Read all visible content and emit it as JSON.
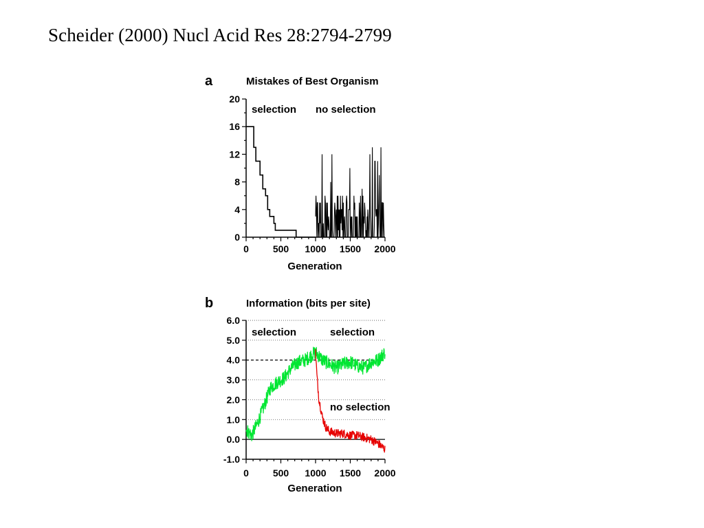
{
  "slide": {
    "title": "Scheider (2000) Nucl Acid Res 28:2794-2799"
  },
  "chart_data": [
    {
      "panel_letter": "a",
      "type": "line",
      "title": "Mistakes of Best Organism",
      "xlabel": "Generation",
      "ylabel": "",
      "xlim": [
        0,
        2000
      ],
      "ylim": [
        0,
        20
      ],
      "x_ticks": [
        "0",
        "500",
        "1000",
        "1500",
        "2000"
      ],
      "y_ticks": [
        "0",
        "4",
        "8",
        "12",
        "16",
        "20"
      ],
      "annotations": [
        "selection",
        "no selection"
      ],
      "series": [
        {
          "color": "#000000",
          "points": [
            [
              0,
              16
            ],
            [
              90,
              16
            ],
            [
              110,
              13
            ],
            [
              140,
              11
            ],
            [
              180,
              11
            ],
            [
              200,
              9
            ],
            [
              240,
              7
            ],
            [
              280,
              6
            ],
            [
              310,
              4
            ],
            [
              340,
              3
            ],
            [
              380,
              3
            ],
            [
              400,
              2
            ],
            [
              420,
              1
            ],
            [
              600,
              1
            ],
            [
              700,
              1
            ],
            [
              720,
              0
            ],
            [
              1000,
              0
            ]
          ]
        },
        {
          "color": "#000000",
          "style": "noisy",
          "x_range": [
            1000,
            2000
          ],
          "baseline_range": [
            0,
            6
          ],
          "max_observed": 13
        }
      ]
    },
    {
      "panel_letter": "b",
      "type": "line",
      "title": "Information (bits per site)",
      "xlabel": "Generation",
      "ylabel": "",
      "xlim": [
        0,
        2000
      ],
      "ylim": [
        -1.0,
        6.0
      ],
      "x_ticks": [
        "0",
        "500",
        "1000",
        "1500",
        "2000"
      ],
      "y_ticks": [
        "-1.0",
        "0.0",
        "1.0",
        "2.0",
        "3.0",
        "4.0",
        "5.0",
        "6.0"
      ],
      "reference_line": 4.0,
      "annotations": [
        "selection",
        "selection",
        "no selection"
      ],
      "series": [
        {
          "color": "#00e632",
          "trend": [
            [
              0,
              0.5
            ],
            [
              80,
              0.2
            ],
            [
              150,
              0.7
            ],
            [
              250,
              1.6
            ],
            [
              350,
              2.6
            ],
            [
              450,
              2.9
            ],
            [
              550,
              3.1
            ],
            [
              650,
              3.6
            ],
            [
              750,
              3.9
            ],
            [
              850,
              4.0
            ],
            [
              1000,
              4.4
            ],
            [
              1100,
              4.0
            ],
            [
              1200,
              3.8
            ],
            [
              1300,
              3.6
            ],
            [
              1400,
              3.8
            ],
            [
              1500,
              3.9
            ],
            [
              1600,
              3.7
            ],
            [
              1700,
              3.6
            ],
            [
              1800,
              3.9
            ],
            [
              1900,
              4.0
            ],
            [
              2000,
              4.4
            ]
          ],
          "noise": 0.35
        },
        {
          "color": "#e60000",
          "trend": [
            [
              1000,
              4.4
            ],
            [
              1020,
              3.2
            ],
            [
              1050,
              2.0
            ],
            [
              1100,
              1.1
            ],
            [
              1150,
              0.6
            ],
            [
              1200,
              0.4
            ],
            [
              1300,
              0.3
            ],
            [
              1400,
              0.3
            ],
            [
              1500,
              0.2
            ],
            [
              1600,
              0.2
            ],
            [
              1700,
              0.1
            ],
            [
              1800,
              0.0
            ],
            [
              1900,
              -0.2
            ],
            [
              2000,
              -0.5
            ]
          ],
          "noise": 0.22
        }
      ]
    }
  ]
}
